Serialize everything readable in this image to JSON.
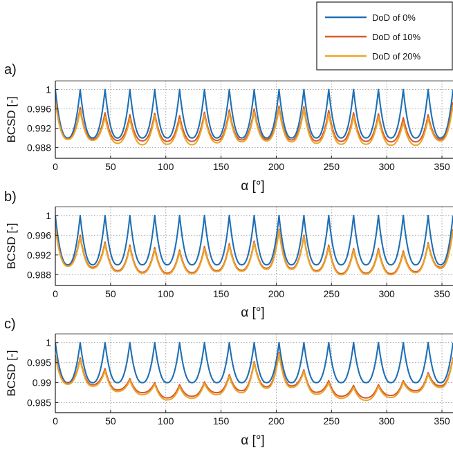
{
  "legend": {
    "placement": "top-right, outside axes",
    "entries": [
      {
        "label": "DoD of 0%",
        "color": "#1f6fb4"
      },
      {
        "label": "DoD of 10%",
        "color": "#d95b2b"
      },
      {
        "label": "DoD of 20%",
        "color": "#eba62c"
      }
    ]
  },
  "chart_data": [
    {
      "type": "line",
      "panel_label": "a)",
      "xlabel": "α [°]",
      "ylabel": "BCSD [-]",
      "xlim": [
        0,
        360
      ],
      "ylim": [
        0.9858,
        1.0018
      ],
      "xticks": [
        0,
        50,
        100,
        150,
        200,
        250,
        300,
        350
      ],
      "yticks": [
        0.988,
        0.992,
        0.996,
        1
      ],
      "ytick_labels": [
        "0.988",
        "0.992",
        "0.996",
        "1"
      ],
      "grid": true,
      "period_deg": 22.5,
      "x": [
        0,
        22.5,
        45,
        67.5,
        90,
        112.5,
        135,
        157.5,
        180,
        202.5,
        225,
        247.5,
        270,
        292.5,
        315,
        337.5,
        360
      ],
      "series": [
        {
          "name": "DoD of 0%",
          "color": "#1f6fb4",
          "peaks": [
            1,
            1,
            1,
            1,
            1,
            1,
            1,
            1,
            1,
            1,
            1,
            1,
            1,
            1,
            1,
            1,
            1
          ],
          "troughs": [
            0.99,
            0.99,
            0.99,
            0.99,
            0.99,
            0.99,
            0.99,
            0.99,
            0.99,
            0.99,
            0.99,
            0.99,
            0.99,
            0.99,
            0.99,
            0.99
          ]
        },
        {
          "name": "DoD of 10%",
          "color": "#d95b2b",
          "peaks": [
            0.998,
            0.9963,
            0.9952,
            0.9948,
            0.9951,
            0.9946,
            0.9953,
            0.9958,
            0.996,
            0.9966,
            0.9965,
            0.9957,
            0.9952,
            0.995,
            0.9942,
            0.9948,
            0.9974
          ],
          "troughs": [
            0.9898,
            0.9897,
            0.9895,
            0.9894,
            0.9893,
            0.9893,
            0.9895,
            0.9896,
            0.9897,
            0.9896,
            0.9894,
            0.9893,
            0.9893,
            0.9892,
            0.9892,
            0.9897
          ]
        },
        {
          "name": "DoD of 20%",
          "color": "#eba62c",
          "peaks": [
            0.9975,
            0.9957,
            0.9944,
            0.994,
            0.9946,
            0.9938,
            0.9948,
            0.9952,
            0.9954,
            0.9961,
            0.996,
            0.995,
            0.9945,
            0.9944,
            0.9933,
            0.9941,
            0.9968
          ],
          "troughs": [
            0.9897,
            0.9895,
            0.9889,
            0.9886,
            0.9887,
            0.9886,
            0.989,
            0.9892,
            0.9894,
            0.9892,
            0.9889,
            0.9887,
            0.9887,
            0.9885,
            0.9885,
            0.9894
          ]
        }
      ]
    },
    {
      "type": "line",
      "panel_label": "b)",
      "xlabel": "α [°]",
      "ylabel": "BCSD [-]",
      "xlim": [
        0,
        360
      ],
      "ylim": [
        0.9858,
        1.0018
      ],
      "xticks": [
        0,
        50,
        100,
        150,
        200,
        250,
        300,
        350
      ],
      "yticks": [
        0.988,
        0.992,
        0.996,
        1
      ],
      "ytick_labels": [
        "0.988",
        "0.992",
        "0.996",
        "1"
      ],
      "grid": true,
      "period_deg": 22.5,
      "x": [
        0,
        22.5,
        45,
        67.5,
        90,
        112.5,
        135,
        157.5,
        180,
        202.5,
        225,
        247.5,
        270,
        292.5,
        315,
        337.5,
        360
      ],
      "series": [
        {
          "name": "DoD of 0%",
          "color": "#1f6fb4",
          "peaks": [
            1,
            1,
            1,
            1,
            1,
            1,
            1,
            1,
            1,
            1,
            1,
            1,
            1,
            1,
            1,
            1,
            1
          ],
          "troughs": [
            0.99,
            0.99,
            0.99,
            0.99,
            0.99,
            0.99,
            0.99,
            0.99,
            0.99,
            0.99,
            0.99,
            0.99,
            0.99,
            0.99,
            0.99,
            0.99
          ]
        },
        {
          "name": "DoD of 10%",
          "color": "#d95b2b",
          "peaks": [
            0.9978,
            0.996,
            0.9946,
            0.994,
            0.9935,
            0.993,
            0.9937,
            0.9943,
            0.9948,
            0.9972,
            0.996,
            0.994,
            0.9933,
            0.9933,
            0.9928,
            0.9945,
            0.9972
          ],
          "troughs": [
            0.9898,
            0.9895,
            0.9888,
            0.9885,
            0.9883,
            0.9884,
            0.9888,
            0.9889,
            0.9893,
            0.9893,
            0.9888,
            0.9882,
            0.9883,
            0.9882,
            0.9886,
            0.9895
          ]
        },
        {
          "name": "DoD of 20%",
          "color": "#eba62c",
          "peaks": [
            0.9975,
            0.9956,
            0.9942,
            0.9936,
            0.9931,
            0.9926,
            0.9933,
            0.9939,
            0.9945,
            0.997,
            0.9957,
            0.9936,
            0.9929,
            0.9929,
            0.9924,
            0.9942,
            0.9969
          ],
          "troughs": [
            0.9897,
            0.9893,
            0.9886,
            0.9883,
            0.9881,
            0.9882,
            0.9886,
            0.9887,
            0.9891,
            0.9891,
            0.9886,
            0.988,
            0.9881,
            0.988,
            0.9884,
            0.9893
          ]
        }
      ]
    },
    {
      "type": "line",
      "panel_label": "c)",
      "xlabel": "α [°]",
      "ylabel": "BCSD [-]",
      "xlim": [
        0,
        360
      ],
      "ylim": [
        0.9825,
        1.0022
      ],
      "xticks": [
        0,
        50,
        100,
        150,
        200,
        250,
        300,
        350
      ],
      "yticks": [
        0.985,
        0.99,
        0.995,
        1
      ],
      "ytick_labels": [
        "0.985",
        "0.99",
        "0.995",
        "1"
      ],
      "grid": true,
      "period_deg": 22.5,
      "x": [
        0,
        22.5,
        45,
        67.5,
        90,
        112.5,
        135,
        157.5,
        180,
        202.5,
        225,
        247.5,
        270,
        292.5,
        315,
        337.5,
        360
      ],
      "series": [
        {
          "name": "DoD of 0%",
          "color": "#1f6fb4",
          "peaks": [
            1,
            1,
            1,
            1,
            1,
            1,
            1,
            1,
            1,
            1,
            1,
            1,
            1,
            1,
            1,
            1,
            1
          ],
          "troughs": [
            0.99,
            0.99,
            0.99,
            0.99,
            0.99,
            0.99,
            0.99,
            0.99,
            0.99,
            0.99,
            0.99,
            0.99,
            0.99,
            0.99,
            0.99,
            0.99
          ]
        },
        {
          "name": "DoD of 10%",
          "color": "#d95b2b",
          "peaks": [
            0.9968,
            0.9962,
            0.9935,
            0.991,
            0.99,
            0.9895,
            0.9902,
            0.992,
            0.9953,
            0.9975,
            0.9932,
            0.9905,
            0.9893,
            0.9895,
            0.9905,
            0.9925,
            0.9963
          ],
          "troughs": [
            0.9898,
            0.9895,
            0.9882,
            0.9875,
            0.9862,
            0.9866,
            0.9875,
            0.988,
            0.989,
            0.9892,
            0.9876,
            0.9866,
            0.9862,
            0.9868,
            0.988,
            0.9892
          ]
        },
        {
          "name": "DoD of 20%",
          "color": "#eba62c",
          "peaks": [
            0.9965,
            0.9958,
            0.993,
            0.9906,
            0.9896,
            0.989,
            0.9898,
            0.9916,
            0.995,
            0.9972,
            0.9928,
            0.99,
            0.9888,
            0.9891,
            0.9901,
            0.9921,
            0.996
          ],
          "troughs": [
            0.9896,
            0.9891,
            0.9878,
            0.987,
            0.9857,
            0.9861,
            0.987,
            0.9875,
            0.9886,
            0.9888,
            0.9871,
            0.9861,
            0.9856,
            0.9863,
            0.9876,
            0.9888
          ]
        }
      ]
    }
  ]
}
